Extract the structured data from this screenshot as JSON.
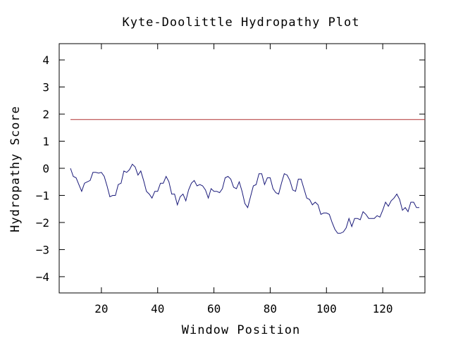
{
  "chart_data": {
    "type": "line",
    "title": "Kyte-Doolittle Hydropathy Plot",
    "xlabel": "Window Position",
    "ylabel": "Hydropathy Score",
    "xlim": [
      5,
      135
    ],
    "ylim": [
      -4.6,
      4.6
    ],
    "xticks": [
      20,
      40,
      60,
      80,
      100,
      120
    ],
    "yticks": [
      -4,
      -3,
      -2,
      -1,
      0,
      1,
      2,
      3,
      4
    ],
    "grid": false,
    "legend": "none",
    "colors": {
      "series": "#1a1a7a",
      "threshold": "#b03030",
      "axis": "#000000",
      "text": "#000000"
    },
    "threshold": {
      "value": 1.8,
      "x_start": 9,
      "x_end": 135
    },
    "series": [
      {
        "x": [
          9,
          10,
          11,
          12,
          13,
          14,
          15,
          16,
          17,
          18,
          19,
          20,
          21,
          22,
          23,
          24,
          25,
          26,
          27,
          28,
          29,
          30,
          31,
          32,
          33,
          34,
          35,
          36,
          37,
          38,
          39,
          40,
          41,
          42,
          43,
          44,
          45,
          46,
          47,
          48,
          49,
          50,
          51,
          52,
          53,
          54,
          55,
          56,
          57,
          58,
          59,
          60,
          61,
          62,
          63,
          64,
          65,
          66,
          67,
          68,
          69,
          70,
          71,
          72,
          73,
          74,
          75,
          76,
          77,
          78,
          79,
          80,
          81,
          82,
          83,
          84,
          85,
          86,
          87,
          88,
          89,
          90,
          91,
          92,
          93,
          94,
          95,
          96,
          97,
          98,
          99,
          100,
          101,
          102,
          103,
          104,
          105,
          106,
          107,
          108,
          109,
          110,
          111,
          112,
          113,
          114,
          115,
          116,
          117,
          118,
          119,
          120,
          121,
          122,
          123,
          124,
          125,
          126,
          127,
          128,
          129,
          130,
          131,
          132,
          133
        ],
        "values": [
          0.0,
          -0.3,
          -0.35,
          -0.6,
          -0.85,
          -0.55,
          -0.5,
          -0.45,
          -0.15,
          -0.15,
          -0.18,
          -0.15,
          -0.3,
          -0.65,
          -1.05,
          -1.0,
          -1.0,
          -0.6,
          -0.55,
          -0.1,
          -0.15,
          -0.05,
          0.15,
          0.05,
          -0.25,
          -0.1,
          -0.45,
          -0.85,
          -0.95,
          -1.1,
          -0.85,
          -0.85,
          -0.55,
          -0.55,
          -0.3,
          -0.5,
          -0.95,
          -0.95,
          -1.35,
          -1.05,
          -0.95,
          -1.2,
          -0.8,
          -0.55,
          -0.45,
          -0.65,
          -0.6,
          -0.65,
          -0.8,
          -1.1,
          -0.75,
          -0.85,
          -0.85,
          -0.9,
          -0.75,
          -0.35,
          -0.3,
          -0.4,
          -0.7,
          -0.75,
          -0.5,
          -0.85,
          -1.3,
          -1.45,
          -1.05,
          -0.65,
          -0.6,
          -0.2,
          -0.2,
          -0.6,
          -0.35,
          -0.35,
          -0.75,
          -0.9,
          -0.95,
          -0.55,
          -0.2,
          -0.25,
          -0.45,
          -0.8,
          -0.85,
          -0.4,
          -0.4,
          -0.75,
          -1.1,
          -1.15,
          -1.35,
          -1.25,
          -1.35,
          -1.7,
          -1.65,
          -1.65,
          -1.7,
          -2.0,
          -2.25,
          -2.4,
          -2.4,
          -2.35,
          -2.2,
          -1.85,
          -2.15,
          -1.85,
          -1.85,
          -1.9,
          -1.6,
          -1.7,
          -1.85,
          -1.85,
          -1.85,
          -1.75,
          -1.8,
          -1.55,
          -1.25,
          -1.4,
          -1.2,
          -1.1,
          -0.95,
          -1.15,
          -1.55,
          -1.45,
          -1.6,
          -1.25,
          -1.25,
          -1.45,
          -1.45
        ]
      }
    ]
  }
}
